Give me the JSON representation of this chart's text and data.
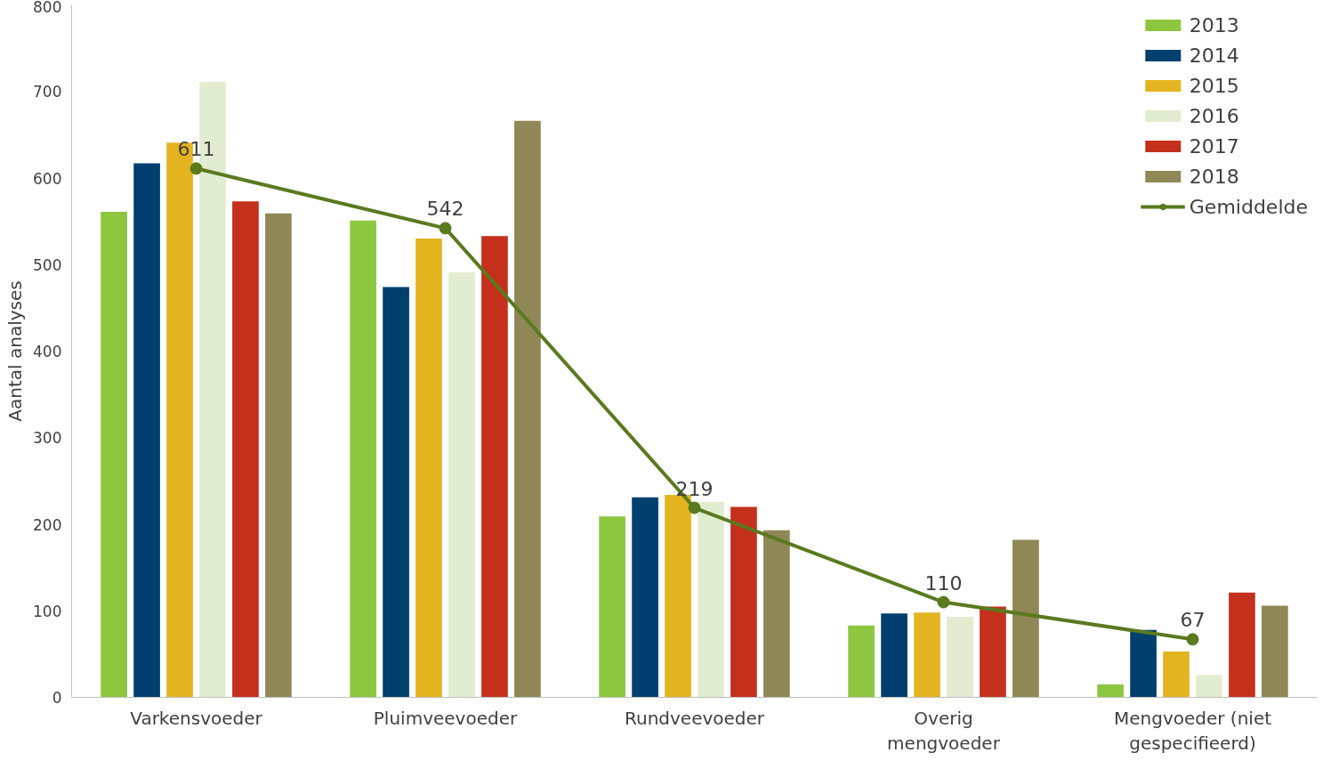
{
  "chart_data": {
    "type": "bar",
    "ylabel": "Aantal analyses",
    "categories": [
      "Varkensvoeder",
      "Pluimveevoeder",
      "Rundveevoeder",
      "Overig mengvoeder",
      "Mengvoeder (niet gespecifieerd)"
    ],
    "series": [
      {
        "name": "2013",
        "color": "#8dc63f",
        "values": [
          561,
          551,
          209,
          83,
          15
        ]
      },
      {
        "name": "2014",
        "color": "#003f6e",
        "values": [
          617,
          474,
          231,
          97,
          78
        ]
      },
      {
        "name": "2015",
        "color": "#e3b420",
        "values": [
          641,
          530,
          234,
          98,
          53
        ]
      },
      {
        "name": "2016",
        "color": "#e2ecd0",
        "values": [
          711,
          491,
          226,
          93,
          26
        ]
      },
      {
        "name": "2017",
        "color": "#c4301c",
        "values": [
          573,
          533,
          220,
          105,
          121
        ]
      },
      {
        "name": "2018",
        "color": "#8f8756",
        "values": [
          559,
          666,
          193,
          182,
          106
        ]
      },
      {
        "name": "Gemiddelde",
        "type": "line",
        "color": "#5a7a1e",
        "marker": "circle",
        "data_labels": true,
        "values": [
          611,
          542,
          219,
          110,
          67
        ]
      }
    ],
    "ylim": [
      0,
      800
    ],
    "yticks": [
      0,
      100,
      200,
      300,
      400,
      500,
      600,
      700,
      800
    ],
    "grid": false,
    "legend": "top right"
  }
}
